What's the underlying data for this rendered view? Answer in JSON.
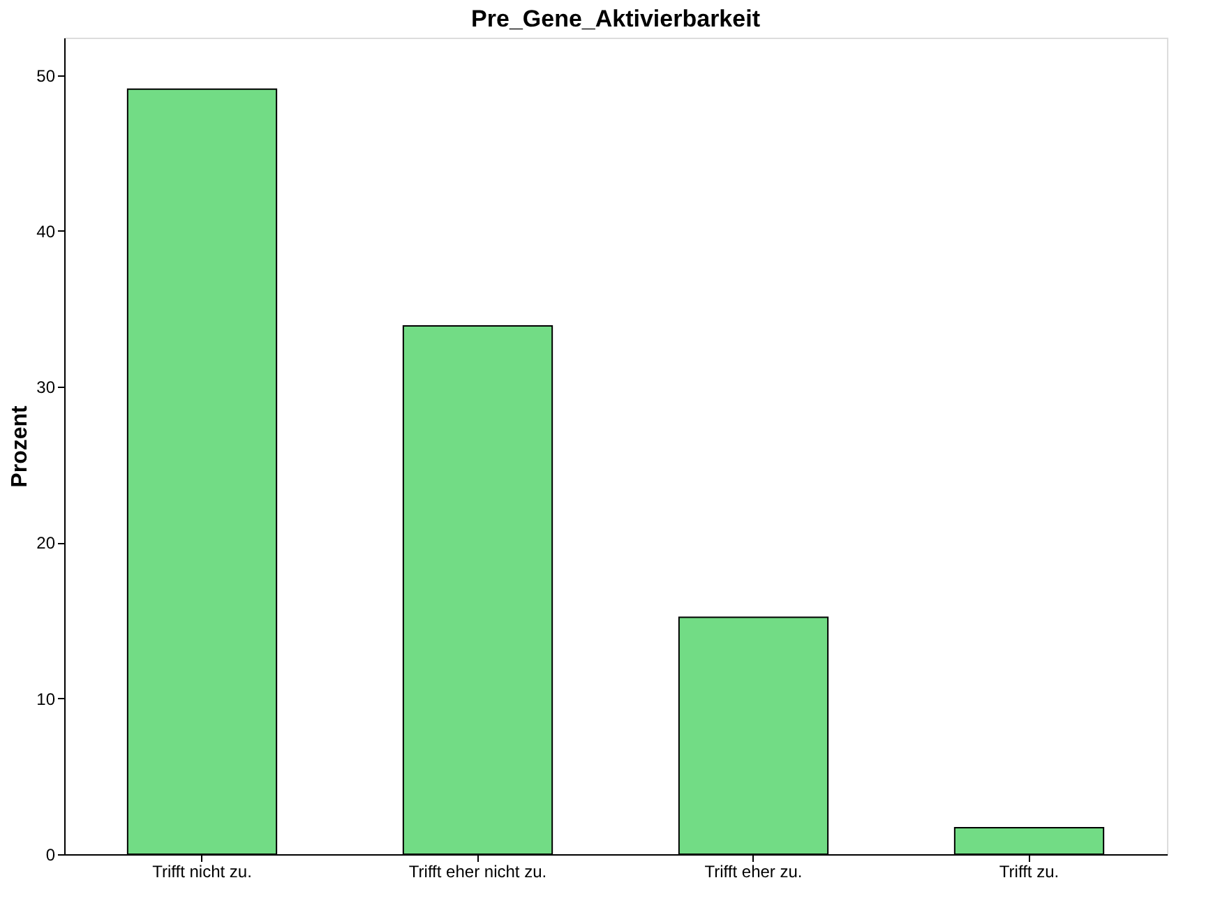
{
  "chart_data": {
    "type": "bar",
    "title": "Pre_Gene_Aktivierbarkeit",
    "ylabel": "Prozent",
    "categories": [
      "Trifft nicht zu.",
      "Trifft eher nicht zu.",
      "Trifft eher zu.",
      "Trifft zu."
    ],
    "values": [
      49.1,
      33.9,
      15.2,
      1.7
    ],
    "color": "#72dc85",
    "ylim": [
      0,
      52.4
    ],
    "yticks": [
      0,
      10,
      20,
      30,
      40,
      50
    ],
    "grid": false
  }
}
